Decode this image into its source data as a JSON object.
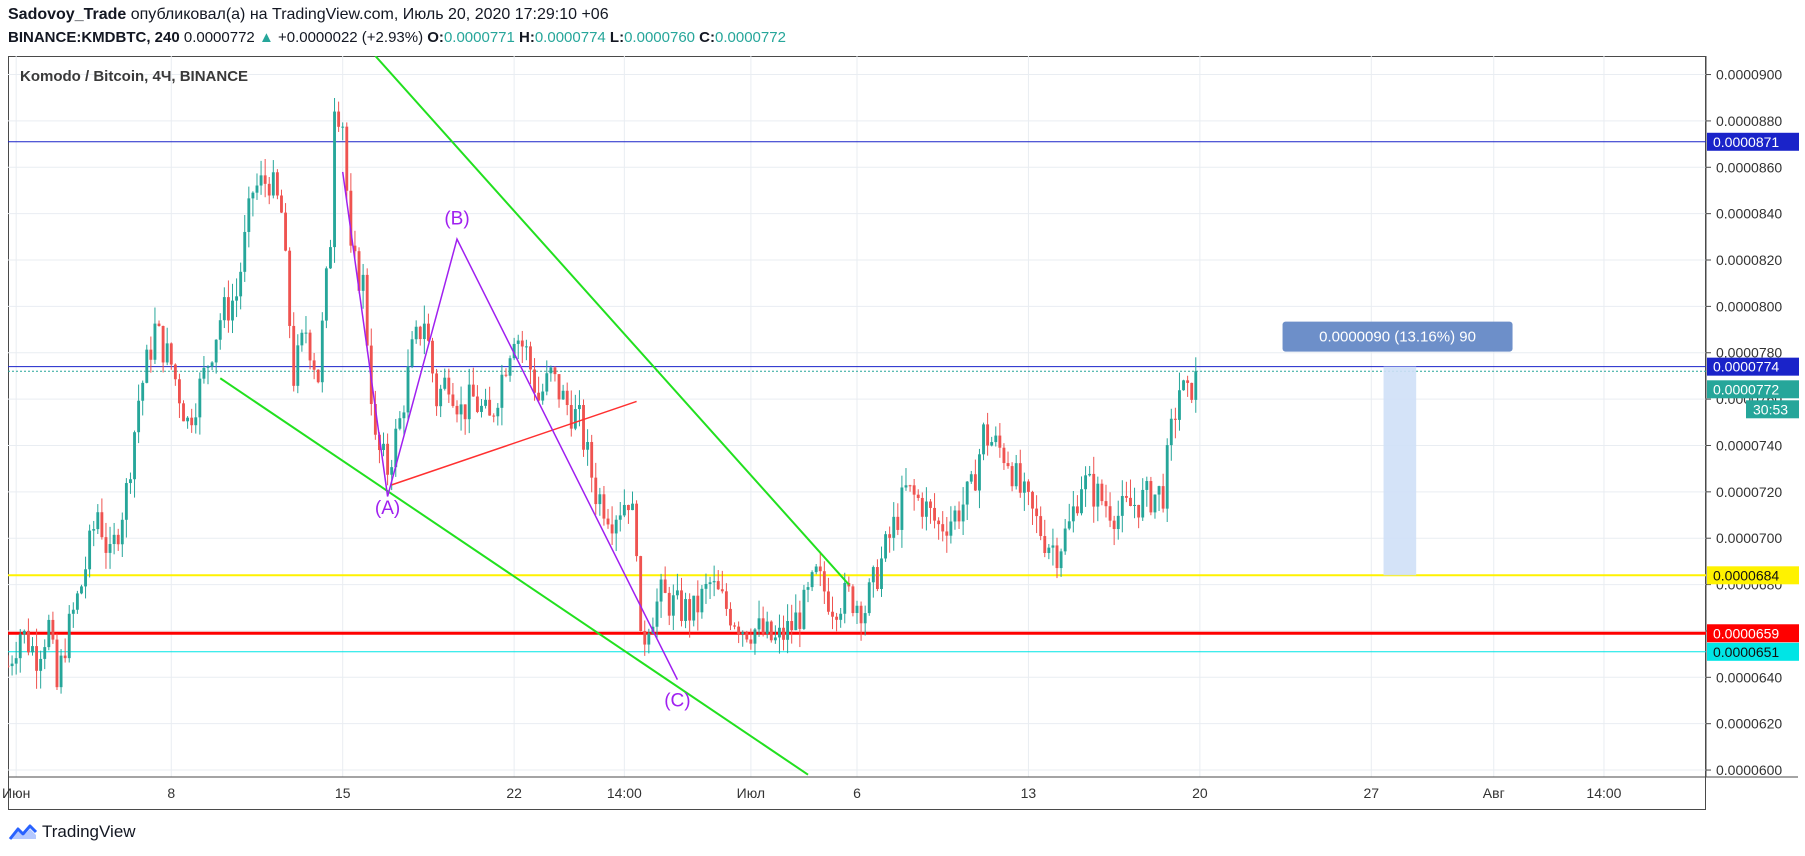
{
  "header": {
    "author": "Sadovoy_Trade",
    "published_text": "опубликовал(а) на TradingView.com, Июль 20, 2020 17:29:10 +06",
    "symbol_line": "BINANCE:KMDBTC, 240",
    "last": "0.0000772",
    "change_arrow": "▲",
    "change": "+0.0000022 (+2.93%)",
    "o_label": "O:",
    "o_value": "0.0000771",
    "h_label": "H:",
    "h_value": "0.0000774",
    "l_label": "L:",
    "l_value": "0.0000760",
    "c_label": "C:",
    "c_value": "0.0000772"
  },
  "chart_title": "Komodo / Bitcoin, 4Ч, BINANCE",
  "footer": {
    "brand": "TradingView",
    "logo_icon": "tradingview-logo-icon"
  },
  "colors": {
    "up": "#26a69a",
    "down": "#ef5350",
    "grid": "#e9edf2",
    "resistance_blue": "#1a23c9",
    "support_yellow": "#fff200",
    "support_red": "#ff0000",
    "support_cyan": "#00e5e5",
    "channel_green": "#22e01f",
    "wave_purple": "#a020f0",
    "trend_red": "#ff3030",
    "measure_fill": "#cfe0f7",
    "measure_label": "#6d8fc9"
  },
  "chart_data": {
    "type": "candlestick",
    "title": "Komodo / Bitcoin, 4Ч, BINANCE",
    "y_axis": {
      "ticks": [
        "0.0000600",
        "0.0000620",
        "0.0000640",
        "0.0000660",
        "0.0000680",
        "0.0000700",
        "0.0000720",
        "0.0000740",
        "0.0000760",
        "0.0000780",
        "0.0000800",
        "0.0000820",
        "0.0000840",
        "0.0000860",
        "0.0000880",
        "0.0000900"
      ],
      "ylim": [
        5.97e-05,
        9.08e-05
      ]
    },
    "x_axis": {
      "ticks": [
        {
          "label": "Июн",
          "bar": 2
        },
        {
          "label": "8",
          "bar": 40
        },
        {
          "label": "15",
          "bar": 82
        },
        {
          "label": "22",
          "bar": 124
        },
        {
          "label": "14:00",
          "bar": 151
        },
        {
          "label": "Июл",
          "bar": 182
        },
        {
          "label": "6",
          "bar": 208
        },
        {
          "label": "13",
          "bar": 250
        },
        {
          "label": "20",
          "bar": 292
        },
        {
          "label": "27",
          "bar": 334
        },
        {
          "label": "Авг",
          "bar": 364
        },
        {
          "label": "14:00",
          "bar": 391
        }
      ],
      "bar_span": [
        0,
        416
      ]
    },
    "price_path": [
      [
        0,
        6.45e-05
      ],
      [
        3,
        6.6e-05
      ],
      [
        7,
        6.5e-05
      ],
      [
        10,
        6.62e-05
      ],
      [
        12,
        6.35e-05
      ],
      [
        14,
        6.55e-05
      ],
      [
        18,
        6.8e-05
      ],
      [
        22,
        7.12e-05
      ],
      [
        25,
        6.9e-05
      ],
      [
        29,
        7.2e-05
      ],
      [
        32,
        7.6e-05
      ],
      [
        36,
        7.9e-05
      ],
      [
        40,
        7.75e-05
      ],
      [
        44,
        7.5e-05
      ],
      [
        48,
        7.7e-05
      ],
      [
        52,
        7.95e-05
      ],
      [
        56,
        8.05e-05
      ],
      [
        60,
        8.5e-05
      ],
      [
        64,
        8.55e-05
      ],
      [
        67,
        8.4e-05
      ],
      [
        70,
        7.7e-05
      ],
      [
        73,
        7.9e-05
      ],
      [
        76,
        7.7e-05
      ],
      [
        79,
        8.3e-05
      ],
      [
        80,
        8.9e-05
      ],
      [
        82,
        8.8e-05
      ],
      [
        84,
        8.2e-05
      ],
      [
        87,
        8.1e-05
      ],
      [
        90,
        7.4e-05
      ],
      [
        93,
        7.3e-05
      ],
      [
        96,
        7.5e-05
      ],
      [
        99,
        7.8e-05
      ],
      [
        102,
        7.95e-05
      ],
      [
        105,
        7.6e-05
      ],
      [
        108,
        7.7e-05
      ],
      [
        111,
        7.55e-05
      ],
      [
        114,
        7.6e-05
      ],
      [
        118,
        7.5e-05
      ],
      [
        121,
        7.7e-05
      ],
      [
        124,
        7.9e-05
      ],
      [
        127,
        7.8e-05
      ],
      [
        130,
        7.6e-05
      ],
      [
        133,
        7.7e-05
      ],
      [
        136,
        7.6e-05
      ],
      [
        140,
        7.5e-05
      ],
      [
        144,
        7.2e-05
      ],
      [
        148,
        7.1e-05
      ],
      [
        152,
        7.18e-05
      ],
      [
        154,
        7e-05
      ],
      [
        155,
        6.52e-05
      ],
      [
        157,
        6.65e-05
      ],
      [
        160,
        6.75e-05
      ],
      [
        164,
        6.7e-05
      ],
      [
        168,
        6.68e-05
      ],
      [
        172,
        6.8e-05
      ],
      [
        176,
        6.7e-05
      ],
      [
        180,
        6.62e-05
      ],
      [
        184,
        6.6e-05
      ],
      [
        188,
        6.55e-05
      ],
      [
        192,
        6.62e-05
      ],
      [
        195,
        6.7e-05
      ],
      [
        198,
        6.83e-05
      ],
      [
        202,
        6.72e-05
      ],
      [
        206,
        6.75e-05
      ],
      [
        210,
        6.7e-05
      ],
      [
        213,
        6.85e-05
      ],
      [
        216,
        7e-05
      ],
      [
        220,
        7.2e-05
      ],
      [
        224,
        7.15e-05
      ],
      [
        228,
        7.05e-05
      ],
      [
        232,
        7.1e-05
      ],
      [
        236,
        7.2e-05
      ],
      [
        239,
        7.45e-05
      ],
      [
        242,
        7.4e-05
      ],
      [
        245,
        7.35e-05
      ],
      [
        248,
        7.2e-05
      ],
      [
        251,
        7.1e-05
      ],
      [
        254,
        7e-05
      ],
      [
        257,
        6.95e-05
      ],
      [
        260,
        7.05e-05
      ],
      [
        263,
        7.25e-05
      ],
      [
        266,
        7.2e-05
      ],
      [
        269,
        7.15e-05
      ],
      [
        272,
        7.1e-05
      ],
      [
        276,
        7.15e-05
      ],
      [
        280,
        7.18e-05
      ],
      [
        283,
        7.2e-05
      ],
      [
        285,
        7.45e-05
      ],
      [
        287,
        7.65e-05
      ],
      [
        289,
        7.6e-05
      ],
      [
        291,
        7.72e-05
      ]
    ],
    "horizontal_levels": [
      {
        "price": 8.71e-05,
        "label": "0.0000871",
        "color": "#1a23c9"
      },
      {
        "price": 7.74e-05,
        "label": "0.0000774",
        "color": "#1a23c9"
      },
      {
        "price": 7.72e-05,
        "label": "0.0000772",
        "color": "#26a69a"
      },
      {
        "price": 6.84e-05,
        "label": "0.0000684",
        "color": "#fff200"
      },
      {
        "price": 6.59e-05,
        "label": "0.0000659",
        "color": "#ff0000"
      },
      {
        "price": 6.51e-05,
        "label": "0.0000651",
        "color": "#00e5e5"
      }
    ],
    "countdown": "30:53",
    "wave_labels": [
      {
        "text": "(A)",
        "bar": 93,
        "price": 7.13e-05
      },
      {
        "text": "(B)",
        "bar": 110,
        "price": 8.38e-05
      },
      {
        "text": "(C)",
        "bar": 164,
        "price": 6.3e-05
      }
    ],
    "wave_path": [
      [
        82,
        8.58e-05
      ],
      [
        93,
        7.18e-05
      ],
      [
        110,
        8.29e-05
      ],
      [
        164,
        6.39e-05
      ]
    ],
    "channel_lines": [
      {
        "from": [
          90,
          9.08e-05
        ],
        "to": [
          206,
          6.8e-05
        ]
      },
      {
        "from": [
          52,
          7.69e-05
        ],
        "to": [
          196,
          5.98e-05
        ]
      }
    ],
    "trend_line": {
      "from": [
        94,
        7.23e-05
      ],
      "to": [
        154,
        7.59e-05
      ]
    },
    "measure": {
      "from_bar": 337,
      "to_bar": 345,
      "low": 6.84e-05,
      "high": 7.74e-05,
      "label": "0.0000090 (13.16%) 90"
    }
  }
}
